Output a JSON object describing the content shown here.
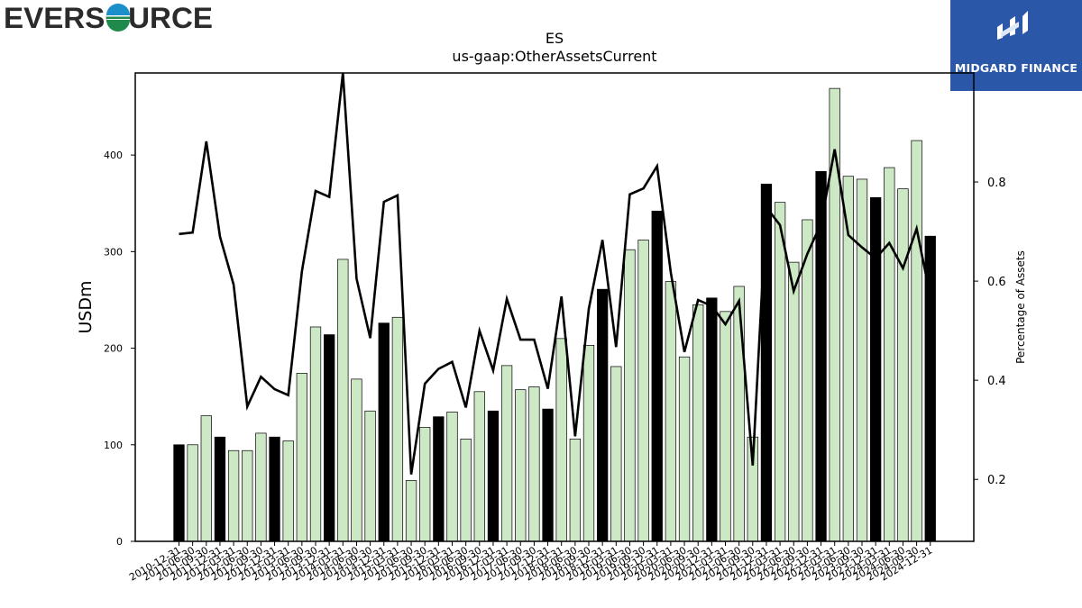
{
  "header": {
    "left_logo_text": "EVERSOURCE",
    "right_logo_text": "MIDGARD FINANCE"
  },
  "chart_data": {
    "type": "bar",
    "title": "ES",
    "subtitle": "us-gaap:OtherAssetsCurrent",
    "ylabel": "USDm",
    "y2label": "Percentage of Assets",
    "ylim": [
      0,
      485
    ],
    "y2lim": [
      0.075,
      1.02
    ],
    "yticks": [
      0,
      100,
      200,
      300,
      400
    ],
    "y2ticks": [
      0.2,
      0.4,
      0.6,
      0.8
    ],
    "colors": {
      "q4_bar": "#000000",
      "other_bar": "#cce8c4",
      "line": "#000000"
    },
    "categories": [
      "2010-12-31",
      "2011-06-30",
      "2011-09-30",
      "2011-12-31",
      "2012-03-31",
      "2012-06-30",
      "2012-09-30",
      "2012-12-31",
      "2013-03-31",
      "2013-06-30",
      "2013-09-30",
      "2013-12-31",
      "2014-03-31",
      "2014-06-30",
      "2014-09-30",
      "2014-12-31",
      "2015-03-31",
      "2015-06-30",
      "2015-09-30",
      "2015-12-31",
      "2016-03-31",
      "2016-06-30",
      "2016-09-30",
      "2016-12-31",
      "2017-03-31",
      "2017-06-30",
      "2017-09-30",
      "2017-12-31",
      "2018-03-31",
      "2018-06-30",
      "2018-09-30",
      "2018-12-31",
      "2019-03-31",
      "2019-06-30",
      "2019-09-30",
      "2019-12-31",
      "2020-03-31",
      "2020-06-30",
      "2020-09-30",
      "2020-12-31",
      "2021-03-31",
      "2021-06-30",
      "2021-09-30",
      "2021-12-31",
      "2022-03-31",
      "2022-06-30",
      "2022-09-30",
      "2022-12-31",
      "2023-03-31",
      "2023-06-30",
      "2023-09-30",
      "2023-12-31",
      "2024-03-31",
      "2024-06-30",
      "2024-09-30",
      "2024-12-31"
    ],
    "series": [
      {
        "values": [
          100,
          100,
          130,
          108,
          94,
          94,
          112,
          108,
          104,
          174,
          222,
          214,
          292,
          168,
          135,
          226,
          232,
          63,
          118,
          129,
          134,
          106,
          155,
          135,
          182,
          157,
          160,
          137,
          210,
          106,
          203,
          261,
          181,
          302,
          312,
          342,
          269,
          191,
          245,
          252,
          238,
          264,
          108,
          370,
          351,
          289,
          333,
          383,
          469,
          378,
          375,
          356,
          387,
          365,
          415,
          316
        ]
      },
      {
        "axis": "secondary",
        "values": [
          0.695,
          0.698,
          0.882,
          0.69,
          0.593,
          0.347,
          0.407,
          0.382,
          0.37,
          0.62,
          0.782,
          0.77,
          1.02,
          0.605,
          0.485,
          0.76,
          0.773,
          0.21,
          0.393,
          0.423,
          0.437,
          0.345,
          0.5,
          0.42,
          0.564,
          0.482,
          0.482,
          0.383,
          0.569,
          0.287,
          0.544,
          0.683,
          0.467,
          0.775,
          0.787,
          0.832,
          0.618,
          0.457,
          0.562,
          0.55,
          0.513,
          0.56,
          0.228,
          0.749,
          0.713,
          0.58,
          0.655,
          0.716,
          0.866,
          0.693,
          0.668,
          0.646,
          0.677,
          0.626,
          0.706,
          0.569
        ]
      }
    ]
  }
}
